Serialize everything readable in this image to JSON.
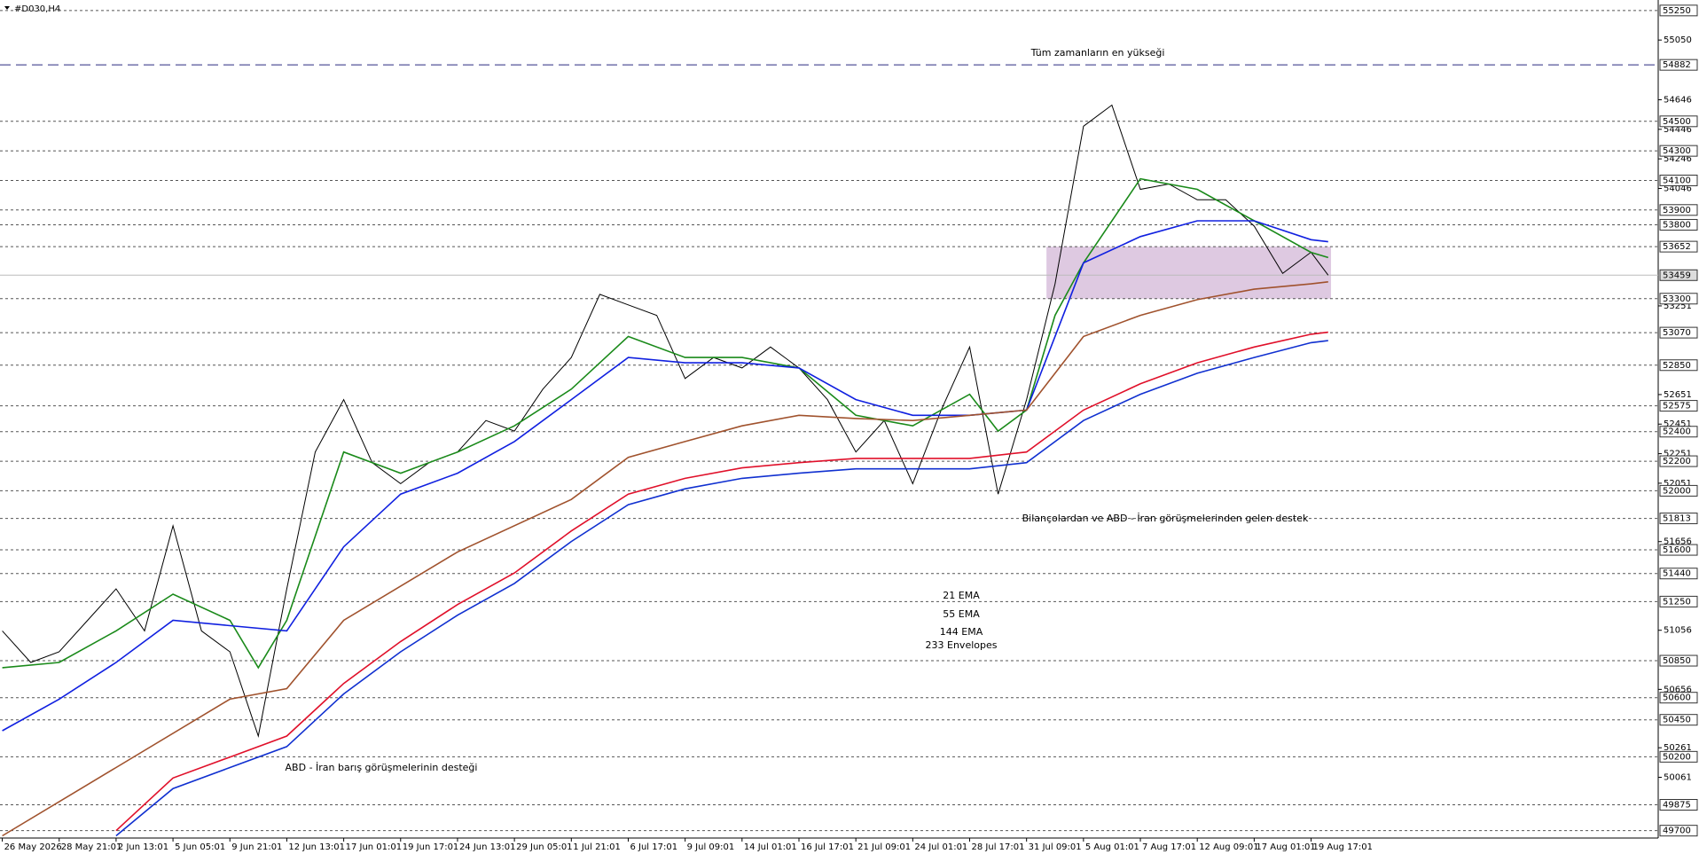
{
  "chart_data": {
    "type": "line",
    "title": "#D030,H4",
    "xlim": [
      -0.04,
      29.1
    ],
    "ylim": [
      49650,
      55321
    ],
    "xticks": [
      {
        "value": 0,
        "label": "26 May 2026"
      },
      {
        "value": 1,
        "label": "28 May 21:01"
      },
      {
        "value": 2,
        "label": "2 Jun 13:01"
      },
      {
        "value": 3,
        "label": "5 Jun 05:01"
      },
      {
        "value": 4,
        "label": "9 Jun 21:01"
      },
      {
        "value": 5,
        "label": "12 Jun 13:01"
      },
      {
        "value": 6,
        "label": "17 Jun 01:01"
      },
      {
        "value": 7,
        "label": "19 Jun 17:01"
      },
      {
        "value": 8,
        "label": "24 Jun 13:01"
      },
      {
        "value": 9,
        "label": "29 Jun 05:01"
      },
      {
        "value": 10,
        "label": "1 Jul 21:01"
      },
      {
        "value": 11,
        "label": "6 Jul 17:01"
      },
      {
        "value": 12,
        "label": "9 Jul 09:01"
      },
      {
        "value": 13,
        "label": "14 Jul 01:01"
      },
      {
        "value": 14,
        "label": "16 Jul 17:01"
      },
      {
        "value": 15,
        "label": "21 Jul 09:01"
      },
      {
        "value": 16,
        "label": "24 Jul 01:01"
      },
      {
        "value": 17,
        "label": "28 Jul 17:01"
      },
      {
        "value": 18,
        "label": "31 Jul 09:01"
      },
      {
        "value": 19,
        "label": "5 Aug 01:01"
      },
      {
        "value": 20,
        "label": "7 Aug 17:01"
      },
      {
        "value": 21,
        "label": "12 Aug 09:01"
      },
      {
        "value": 22,
        "label": "17 Aug 01:01"
      },
      {
        "value": 23,
        "label": "19 Aug 17:01"
      }
    ],
    "yticks": [
      55050,
      54646,
      54446,
      54246,
      54046,
      53251,
      52651,
      52451,
      52251,
      52051,
      51656,
      51056,
      50656,
      50261,
      50061
    ],
    "levels": [
      55250,
      54500,
      54300,
      54100,
      53900,
      53800,
      53652,
      53300,
      53070,
      52850,
      52575,
      52400,
      52200,
      52000,
      51813,
      51600,
      51440,
      51250,
      50850,
      50600,
      50450,
      50200,
      49875,
      49700
    ],
    "high": 54882,
    "current": 53459,
    "zone": {
      "x": [
        18.35,
        23.35
      ],
      "y": [
        53300,
        53652
      ],
      "color": "#d8c0dc"
    },
    "series": [
      {
        "color": "#000000",
        "x": [
          0,
          0.5,
          1,
          1.5,
          2,
          2.5,
          3,
          3.5,
          4,
          4.5,
          5,
          5.5,
          6,
          6.5,
          7,
          7.5,
          8,
          8.5,
          9,
          9.5,
          10,
          10.5,
          11,
          11.5,
          12,
          12.5,
          13,
          13.5,
          14,
          14.5,
          15,
          15.5,
          16,
          16.5,
          17,
          17.5,
          18,
          18.5,
          19,
          19.5,
          20,
          20.5,
          21,
          21.5,
          22,
          22.5,
          23,
          23.3
        ],
        "values": [
          51052,
          50838,
          50910,
          51123,
          51336,
          51052,
          51763,
          51052,
          50910,
          50340,
          51336,
          52262,
          52617,
          52190,
          52048,
          52190,
          52262,
          52475,
          52404,
          52688,
          52902,
          53329,
          53258,
          53187,
          52760,
          52902,
          52831,
          52973,
          52831,
          52617,
          52262,
          52475,
          52048,
          52546,
          52973,
          51977,
          52617,
          53400,
          54467,
          54610,
          54040,
          54076,
          53969,
          53969,
          53791,
          53471,
          53614,
          53459
        ]
      },
      {
        "name": "21 EMA",
        "color": "#1a8a1a",
        "x": [
          0,
          1,
          2,
          3,
          4,
          4.5,
          5,
          6,
          7,
          8,
          9,
          10,
          11,
          12,
          13,
          14,
          15,
          16,
          17,
          17.5,
          18,
          18.5,
          19,
          20,
          21,
          22,
          23,
          23.3
        ],
        "values": [
          50803,
          50838,
          51052,
          51300,
          51123,
          50803,
          51123,
          52262,
          52119,
          52262,
          52439,
          52688,
          53044,
          52902,
          52902,
          52831,
          52511,
          52439,
          52653,
          52404,
          52546,
          53187,
          53542,
          54111,
          54040,
          53827,
          53613,
          53578
        ]
      },
      {
        "name": "55 EMA",
        "color": "#1020e0",
        "x": [
          0,
          1,
          2,
          3,
          4,
          5,
          6,
          7,
          8,
          9,
          10,
          11,
          12,
          13,
          14,
          15,
          16,
          17,
          18,
          18.5,
          19,
          20,
          21,
          22,
          23,
          23.3
        ],
        "values": [
          50376,
          50590,
          50838,
          51123,
          51087,
          51052,
          51621,
          51977,
          52119,
          52333,
          52617,
          52902,
          52866,
          52866,
          52831,
          52617,
          52511,
          52511,
          52546,
          53044,
          53542,
          53720,
          53827,
          53827,
          53699,
          53685
        ]
      },
      {
        "name": "144 EMA",
        "color": "#a0522d",
        "x": [
          0,
          2,
          4,
          5,
          6,
          8,
          10,
          11,
          12,
          13,
          14,
          15,
          16,
          17,
          18,
          19,
          20,
          21,
          22,
          23,
          23.3
        ],
        "values": [
          49665,
          50127,
          50590,
          50661,
          51123,
          51586,
          51941,
          52226,
          52333,
          52439,
          52511,
          52489,
          52475,
          52511,
          52546,
          53044,
          53187,
          53293,
          53364,
          53400,
          53414
        ]
      },
      {
        "name": "233 Envelopes",
        "color": "#e0102a",
        "lower_color": "#1030d0",
        "x": [
          2,
          3,
          4,
          5,
          6,
          7,
          8,
          9,
          10,
          11,
          12,
          13,
          14,
          15,
          16,
          17,
          18,
          19,
          20,
          21,
          22,
          23,
          23.3
        ],
        "values": [
          49700,
          50056,
          50198,
          50340,
          50696,
          50980,
          51230,
          51444,
          51728,
          51977,
          52084,
          52155,
          52190,
          52219,
          52219,
          52219,
          52262,
          52546,
          52724,
          52866,
          52973,
          53059,
          53073
        ],
        "lower": [
          49665,
          49985,
          50127,
          50269,
          50625,
          50910,
          51158,
          51373,
          51657,
          51906,
          52013,
          52084,
          52119,
          52148,
          52148,
          52148,
          52190,
          52475,
          52653,
          52795,
          52902,
          53002,
          53016
        ]
      }
    ],
    "annotations": [
      {
        "text": "Tüm zamanların en yükseği",
        "color": "#1a1aa0"
      },
      {
        "text": "Bilançolardan ve ABD - İran görüşmelerinden gelen destek",
        "color": "#b05a2a"
      },
      {
        "text": "ABD - İran barış görüşmelerinin desteği",
        "color": "#b05a2a"
      }
    ]
  }
}
